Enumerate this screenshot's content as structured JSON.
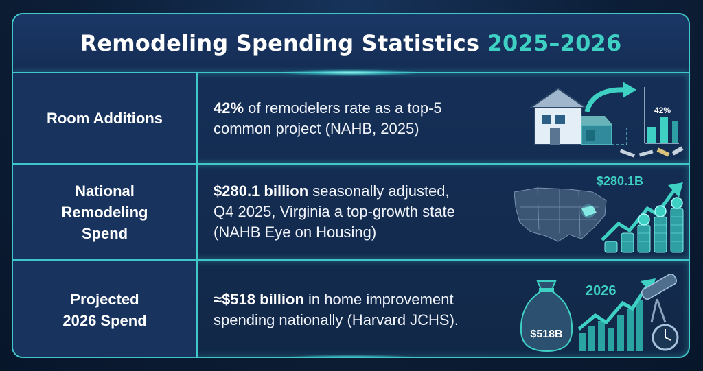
{
  "title": {
    "main": "Remodeling Spending Statistics",
    "years": "2025–2026"
  },
  "rows": [
    {
      "label_lines": [
        "Room Additions"
      ],
      "highlight": "42%",
      "text_lines": [
        " of remodelers rate as a top-5",
        "common project (NAHB, 2025)"
      ],
      "graphic": {
        "icon": "house-addition-icon",
        "value_label": "42%",
        "value": 42
      }
    },
    {
      "label_lines": [
        "National",
        "Remodeling",
        "Spend"
      ],
      "highlight": "$280.1 billion",
      "text_lines": [
        " seasonally adjusted,",
        "Q4 2025, Virginia a top-growth state",
        "(NAHB Eye on Housing)"
      ],
      "graphic": {
        "icon": "us-map-coins-icon",
        "value_label": "$280.1B"
      }
    },
    {
      "label_lines": [
        "Projected",
        "2026 Spend"
      ],
      "highlight": "≈$518 billion",
      "text_lines": [
        " in home improvement",
        "spending nationally (Harvard JCHS)."
      ],
      "graphic": {
        "icon": "money-bag-growth-icon",
        "bag_label": "$518B",
        "year_label": "2026"
      }
    }
  ],
  "colors": {
    "accent": "#3fd0c4",
    "border": "#3fc7c9",
    "background": "#0c1e37",
    "text": "#ffffff"
  }
}
